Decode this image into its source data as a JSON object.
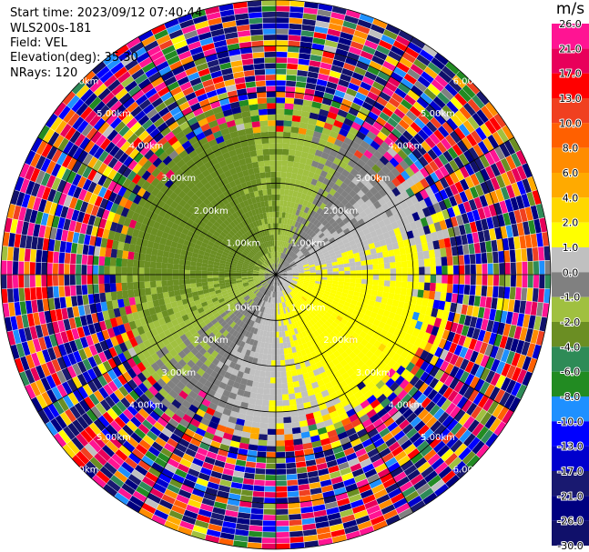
{
  "info": {
    "start_time": "Start time: 2023/09/12 07:40:44",
    "instrument": "WLS200s-181",
    "field": "Field: VEL",
    "elevation": "Elevation(deg): 35.30",
    "nrays": "NRays: 120"
  },
  "colorbar": {
    "unit": "m/s",
    "ticks": [
      "26.0",
      "21.0",
      "17.0",
      "13.0",
      "10.0",
      "8.0",
      "6.0",
      "4.0",
      "2.0",
      "1.0",
      "0.0",
      "-1.0",
      "-2.0",
      "-4.0",
      "-6.0",
      "-8.0",
      "-10.0",
      "-13.0",
      "-17.0",
      "-21.0",
      "-26.0",
      "-30.0"
    ],
    "colors": [
      "#ff1493",
      "#e8005a",
      "#ff0000",
      "#f04020",
      "#ff6000",
      "#ff8c00",
      "#ffaa00",
      "#ffd700",
      "#ffff00",
      "#c0c0c0",
      "#808080",
      "#a0c040",
      "#6b8e23",
      "#2e8b57",
      "#228b22",
      "#1e90ff",
      "#0000ff",
      "#0000cd",
      "#191970",
      "#000080",
      "#10106a"
    ]
  },
  "chart_data": {
    "type": "heatmap",
    "projection": "polar-ppi",
    "field": "VEL",
    "units": "m/s",
    "vmin": -30.0,
    "vmax": 26.0,
    "n_rays": 120,
    "elevation_deg": 35.3,
    "max_range_km": 6.0,
    "range_rings_km": [
      1.0,
      2.0,
      3.0,
      4.0,
      5.0,
      6.0
    ],
    "ring_labels": [
      "1.00km",
      "2.00km",
      "3.00km",
      "4.00km",
      "5.00km",
      "6.00km"
    ],
    "spokes_deg": [
      0,
      30,
      60,
      90,
      120,
      150,
      180,
      210,
      240,
      270,
      300,
      330
    ]
  }
}
